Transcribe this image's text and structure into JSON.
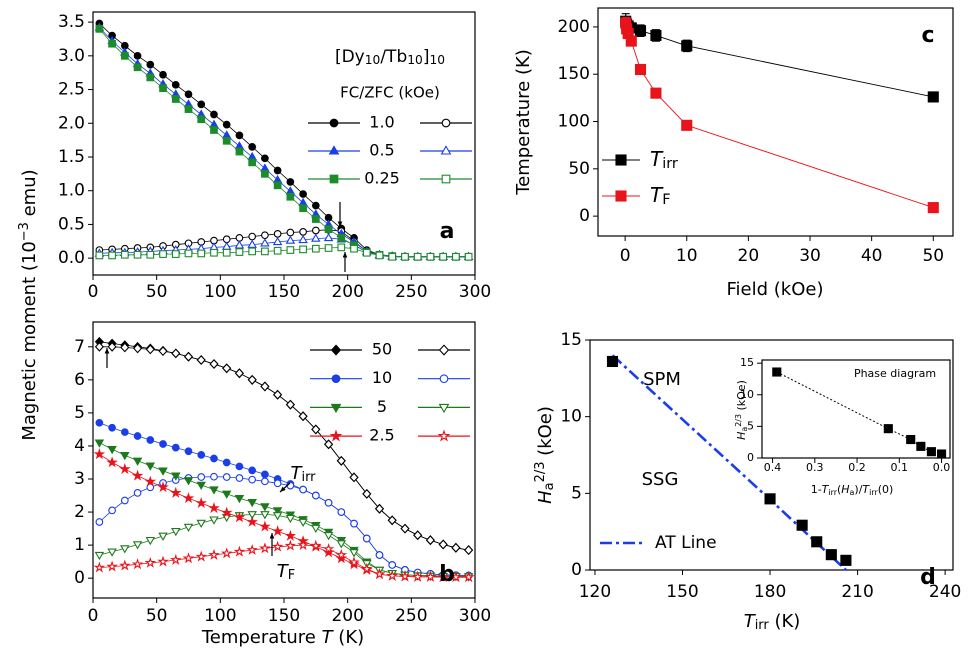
{
  "chart_data": [
    {
      "type": "line",
      "label": "a",
      "title": [
        {
          "t": "[Dy"
        },
        {
          "t": "10",
          "s": "sub"
        },
        {
          "t": "/Tb"
        },
        {
          "t": "10",
          "s": "sub"
        },
        {
          "t": "]"
        },
        {
          "t": "10",
          "s": "sub"
        }
      ],
      "ylabel": [
        {
          "t": "Magnetic moment (10"
        },
        {
          "t": "−3",
          "s": "sup"
        },
        {
          "t": " emu)"
        }
      ],
      "legend_title": "FC/ZFC (kOe)",
      "xlim": [
        0,
        300
      ],
      "ylim": [
        -0.25,
        3.65
      ],
      "xticks": [
        0,
        50,
        100,
        150,
        200,
        250,
        300
      ],
      "yticks": [
        {
          "value": 0,
          "label": "0.0"
        },
        0.5,
        {
          "value": 1,
          "label": "1.0"
        },
        1.5,
        {
          "value": 2,
          "label": "2.0"
        },
        2.5,
        {
          "value": 3,
          "label": "3.0"
        },
        3.5
      ],
      "x": [
        5,
        15,
        25,
        35,
        45,
        55,
        65,
        75,
        85,
        95,
        105,
        115,
        125,
        135,
        145,
        155,
        165,
        175,
        185,
        195,
        205,
        215,
        225,
        235,
        245,
        255,
        265,
        275,
        285,
        295
      ],
      "series": [
        {
          "name": "1.0",
          "color": "#000000",
          "marker": "circle",
          "fc": [
            3.48,
            3.3,
            3.15,
            3.0,
            2.87,
            2.72,
            2.57,
            2.43,
            2.28,
            2.13,
            1.98,
            1.82,
            1.65,
            1.48,
            1.3,
            1.13,
            0.95,
            0.78,
            0.6,
            0.44,
            0.3,
            0.12,
            0.05,
            0.03,
            0.02,
            0.02,
            0.02,
            0.02,
            0.02,
            0.02
          ],
          "zfc": [
            0.12,
            0.13,
            0.14,
            0.15,
            0.16,
            0.18,
            0.2,
            0.22,
            0.24,
            0.26,
            0.28,
            0.3,
            0.32,
            0.34,
            0.36,
            0.38,
            0.39,
            0.41,
            0.42,
            0.4,
            0.25,
            0.1,
            0.05,
            0.03,
            0.02,
            0.02,
            0.02,
            0.02,
            0.02,
            0.02
          ]
        },
        {
          "name": "0.5",
          "color": "#1a3ee8",
          "marker": "triangle",
          "fc": [
            3.42,
            3.22,
            3.05,
            2.88,
            2.74,
            2.58,
            2.43,
            2.28,
            2.13,
            1.98,
            1.82,
            1.66,
            1.5,
            1.33,
            1.16,
            0.99,
            0.82,
            0.65,
            0.5,
            0.36,
            0.24,
            0.1,
            0.05,
            0.03,
            0.02,
            0.02,
            0.02,
            0.02,
            0.02,
            0.02
          ],
          "zfc": [
            0.07,
            0.08,
            0.08,
            0.09,
            0.1,
            0.11,
            0.12,
            0.13,
            0.14,
            0.16,
            0.17,
            0.19,
            0.2,
            0.22,
            0.24,
            0.26,
            0.27,
            0.29,
            0.3,
            0.28,
            0.2,
            0.09,
            0.04,
            0.02,
            0.02,
            0.02,
            0.02,
            0.02,
            0.02,
            0.02
          ]
        },
        {
          "name": "0.25",
          "color": "#1c8c2a",
          "marker": "square",
          "fc": [
            3.4,
            3.18,
            3.0,
            2.83,
            2.68,
            2.52,
            2.36,
            2.21,
            2.06,
            1.9,
            1.74,
            1.58,
            1.42,
            1.25,
            1.08,
            0.91,
            0.74,
            0.58,
            0.43,
            0.3,
            0.19,
            0.09,
            0.05,
            0.03,
            0.02,
            0.02,
            0.02,
            0.02,
            0.02,
            0.02
          ],
          "zfc": [
            0.04,
            0.04,
            0.05,
            0.05,
            0.05,
            0.06,
            0.06,
            0.07,
            0.07,
            0.08,
            0.08,
            0.09,
            0.1,
            0.1,
            0.11,
            0.12,
            0.13,
            0.14,
            0.15,
            0.16,
            0.14,
            0.08,
            0.04,
            0.02,
            0.02,
            0.02,
            0.02,
            0.02,
            0.02,
            0.02
          ]
        }
      ]
    },
    {
      "type": "line",
      "label": "b",
      "xlabel": [
        {
          "t": "Temperature "
        },
        {
          "t": "T",
          "s": "i"
        },
        {
          "t": " (K)"
        }
      ],
      "annotations": [
        [
          {
            "t": "T",
            "s": "i"
          },
          {
            "t": "irr",
            "s": "sub"
          }
        ],
        [
          {
            "t": "T",
            "s": "i"
          },
          {
            "t": "F",
            "s": "sub"
          }
        ]
      ],
      "xlim": [
        0,
        300
      ],
      "ylim": [
        -0.6,
        7.75
      ],
      "xticks": [
        0,
        50,
        100,
        150,
        200,
        250,
        300
      ],
      "yticks": [
        0,
        1,
        2,
        3,
        4,
        5,
        6,
        7
      ],
      "x": [
        5,
        15,
        25,
        35,
        45,
        55,
        65,
        75,
        85,
        95,
        105,
        115,
        125,
        135,
        145,
        155,
        165,
        175,
        185,
        195,
        205,
        215,
        225,
        235,
        245,
        255,
        265,
        275,
        285,
        295
      ],
      "series": [
        {
          "name": "50",
          "color": "#000000",
          "marker": "diamond",
          "fc": [
            7.15,
            7.1,
            7.05,
            7.0,
            6.95,
            6.88,
            6.8,
            6.7,
            6.6,
            6.48,
            6.35,
            6.2,
            6.0,
            5.8,
            5.55,
            5.25,
            4.9,
            4.5,
            4.05,
            3.55,
            3.05,
            2.55,
            2.1,
            1.75,
            1.5,
            1.3,
            1.15,
            1.02,
            0.92,
            0.85
          ],
          "zfc": [
            7.0,
            7.0,
            6.98,
            6.95,
            6.92,
            6.87,
            6.8,
            6.7,
            6.6,
            6.48,
            6.35,
            6.2,
            6.0,
            5.8,
            5.55,
            5.25,
            4.9,
            4.5,
            4.05,
            3.55,
            3.05,
            2.55,
            2.1,
            1.75,
            1.5,
            1.3,
            1.15,
            1.02,
            0.92,
            0.85
          ]
        },
        {
          "name": "10",
          "color": "#1a3ee8",
          "marker": "circle",
          "fc": [
            4.7,
            4.55,
            4.42,
            4.3,
            4.18,
            4.06,
            3.95,
            3.84,
            3.73,
            3.62,
            3.5,
            3.38,
            3.26,
            3.14,
            3.0,
            2.85,
            2.68,
            2.5,
            2.28,
            2.0,
            1.65,
            1.2,
            0.7,
            0.4,
            0.25,
            0.17,
            0.13,
            0.1,
            0.09,
            0.08
          ],
          "zfc": [
            1.7,
            2.05,
            2.35,
            2.58,
            2.75,
            2.88,
            2.97,
            3.03,
            3.06,
            3.07,
            3.06,
            3.03,
            2.98,
            2.93,
            2.87,
            2.8,
            2.68,
            2.5,
            2.28,
            2.0,
            1.65,
            1.2,
            0.7,
            0.4,
            0.25,
            0.17,
            0.13,
            0.1,
            0.09,
            0.08
          ]
        },
        {
          "name": "5",
          "color": "#1c7a1c",
          "marker": "down",
          "fc": [
            4.1,
            3.9,
            3.72,
            3.55,
            3.4,
            3.25,
            3.1,
            2.96,
            2.82,
            2.68,
            2.55,
            2.42,
            2.3,
            2.17,
            2.05,
            1.92,
            1.78,
            1.6,
            1.4,
            1.15,
            0.85,
            0.5,
            0.25,
            0.15,
            0.1,
            0.08,
            0.07,
            0.06,
            0.06,
            0.05
          ],
          "zfc": [
            0.7,
            0.8,
            0.9,
            1.02,
            1.15,
            1.28,
            1.42,
            1.55,
            1.67,
            1.77,
            1.85,
            1.9,
            1.93,
            1.93,
            1.9,
            1.82,
            1.7,
            1.52,
            1.3,
            1.05,
            0.78,
            0.45,
            0.25,
            0.15,
            0.1,
            0.08,
            0.07,
            0.06,
            0.06,
            0.05
          ]
        },
        {
          "name": "2.5",
          "color": "#e8131b",
          "marker": "star",
          "fc": [
            3.75,
            3.5,
            3.3,
            3.1,
            2.92,
            2.75,
            2.58,
            2.42,
            2.27,
            2.12,
            1.98,
            1.84,
            1.7,
            1.56,
            1.42,
            1.28,
            1.12,
            0.95,
            0.78,
            0.6,
            0.42,
            0.25,
            0.12,
            0.07,
            0.05,
            0.04,
            0.04,
            0.03,
            0.03,
            0.03
          ],
          "zfc": [
            0.32,
            0.35,
            0.38,
            0.42,
            0.46,
            0.5,
            0.55,
            0.6,
            0.65,
            0.7,
            0.75,
            0.8,
            0.85,
            0.9,
            0.95,
            0.98,
            1.0,
            0.98,
            0.88,
            0.7,
            0.48,
            0.28,
            0.12,
            0.07,
            0.05,
            0.04,
            0.04,
            0.03,
            0.03,
            0.03
          ]
        }
      ]
    },
    {
      "type": "errorline",
      "label": "c",
      "xlabel": "Field (kOe)",
      "ylabel": "Temperature (K)",
      "xlim": [
        -4.4,
        53.2
      ],
      "ylim": [
        -21,
        220
      ],
      "xticks": [
        0,
        10,
        20,
        30,
        40,
        50
      ],
      "yticks": [
        0,
        50,
        100,
        150,
        200
      ],
      "x": [
        0.1,
        0.25,
        0.5,
        1,
        2.5,
        5,
        10,
        50
      ],
      "series": [
        {
          "name": [
            {
              "t": "T",
              "s": "i"
            },
            {
              "t": "irr",
              "s": "sub"
            }
          ],
          "color": "#000000",
          "marker": "square",
          "values": [
            206,
            203,
            201,
            199,
            196,
            191,
            180,
            126
          ],
          "errors": [
            8,
            5,
            5,
            4,
            6,
            6,
            6,
            5
          ]
        },
        {
          "name": [
            {
              "t": "T",
              "s": "i"
            },
            {
              "t": "F",
              "s": "sub"
            }
          ],
          "color": "#e8131b",
          "marker": "square",
          "values": [
            204,
            198,
            193,
            185,
            155,
            130,
            96,
            9
          ],
          "errors": [
            6,
            6,
            5,
            5,
            4,
            4,
            2,
            2
          ]
        }
      ]
    },
    {
      "type": "scatter",
      "label": "d",
      "xlabel": [
        {
          "t": "T",
          "s": "i"
        },
        {
          "t": "irr",
          "s": "sub"
        },
        {
          "t": " (K)"
        }
      ],
      "ylabel": [
        {
          "t": "H",
          "s": "i"
        },
        {
          "t": "a",
          "s": "sub"
        },
        {
          "t": "2/3",
          "s": "sup"
        },
        {
          "t": " (kOe)"
        }
      ],
      "annotations": [
        "SPM",
        "SSG"
      ],
      "xlim": [
        118.3,
        242.7
      ],
      "ylim": [
        0,
        15
      ],
      "xticks": [
        120,
        150,
        180,
        210,
        240
      ],
      "yticks": [
        0,
        5,
        10,
        15
      ],
      "series": [
        {
          "name": "AT Line",
          "color": "#1a3ee8",
          "line": "dash-dot",
          "x": [
            126,
            180,
            206
          ],
          "values": [
            14,
            4.6,
            0
          ]
        },
        {
          "color": "#000000",
          "marker": "square",
          "x": [
            126,
            180,
            191,
            196,
            201,
            206
          ],
          "values": [
            13.6,
            4.64,
            2.92,
            1.84,
            1.0,
            0.63
          ]
        }
      ]
    },
    {
      "type": "scatter",
      "title": "Phase diagram",
      "xlabel": [
        {
          "t": "1-"
        },
        {
          "t": "T",
          "s": "i"
        },
        {
          "t": "irr",
          "s": "sub"
        },
        {
          "t": "("
        },
        {
          "t": "H",
          "s": "i"
        },
        {
          "t": "a",
          "s": "sub"
        },
        {
          "t": ")/"
        },
        {
          "t": "T",
          "s": "i"
        },
        {
          "t": "irr",
          "s": "sub"
        },
        {
          "t": "(0)"
        }
      ],
      "ylabel": [
        {
          "t": "H",
          "s": "i"
        },
        {
          "t": "a",
          "s": "sub"
        },
        {
          "t": "2/3",
          "s": "sup"
        },
        {
          "t": " (kOe)"
        }
      ],
      "xlim": [
        0.425,
        -0.02
      ],
      "ylim": [
        0,
        15.5
      ],
      "xticks": [
        0.4,
        0.3,
        0.2,
        0.1,
        {
          "value": 0,
          "label": "0.0"
        }
      ],
      "yticks": [
        0,
        5,
        10,
        15
      ],
      "series": [
        {
          "color": "#000000",
          "marker": "square",
          "line": "dotted",
          "x": [
            0.39,
            0.126,
            0.073,
            0.049,
            0.024,
            0
          ],
          "values": [
            13.6,
            4.64,
            2.92,
            1.84,
            1.0,
            0.63
          ]
        }
      ]
    }
  ]
}
